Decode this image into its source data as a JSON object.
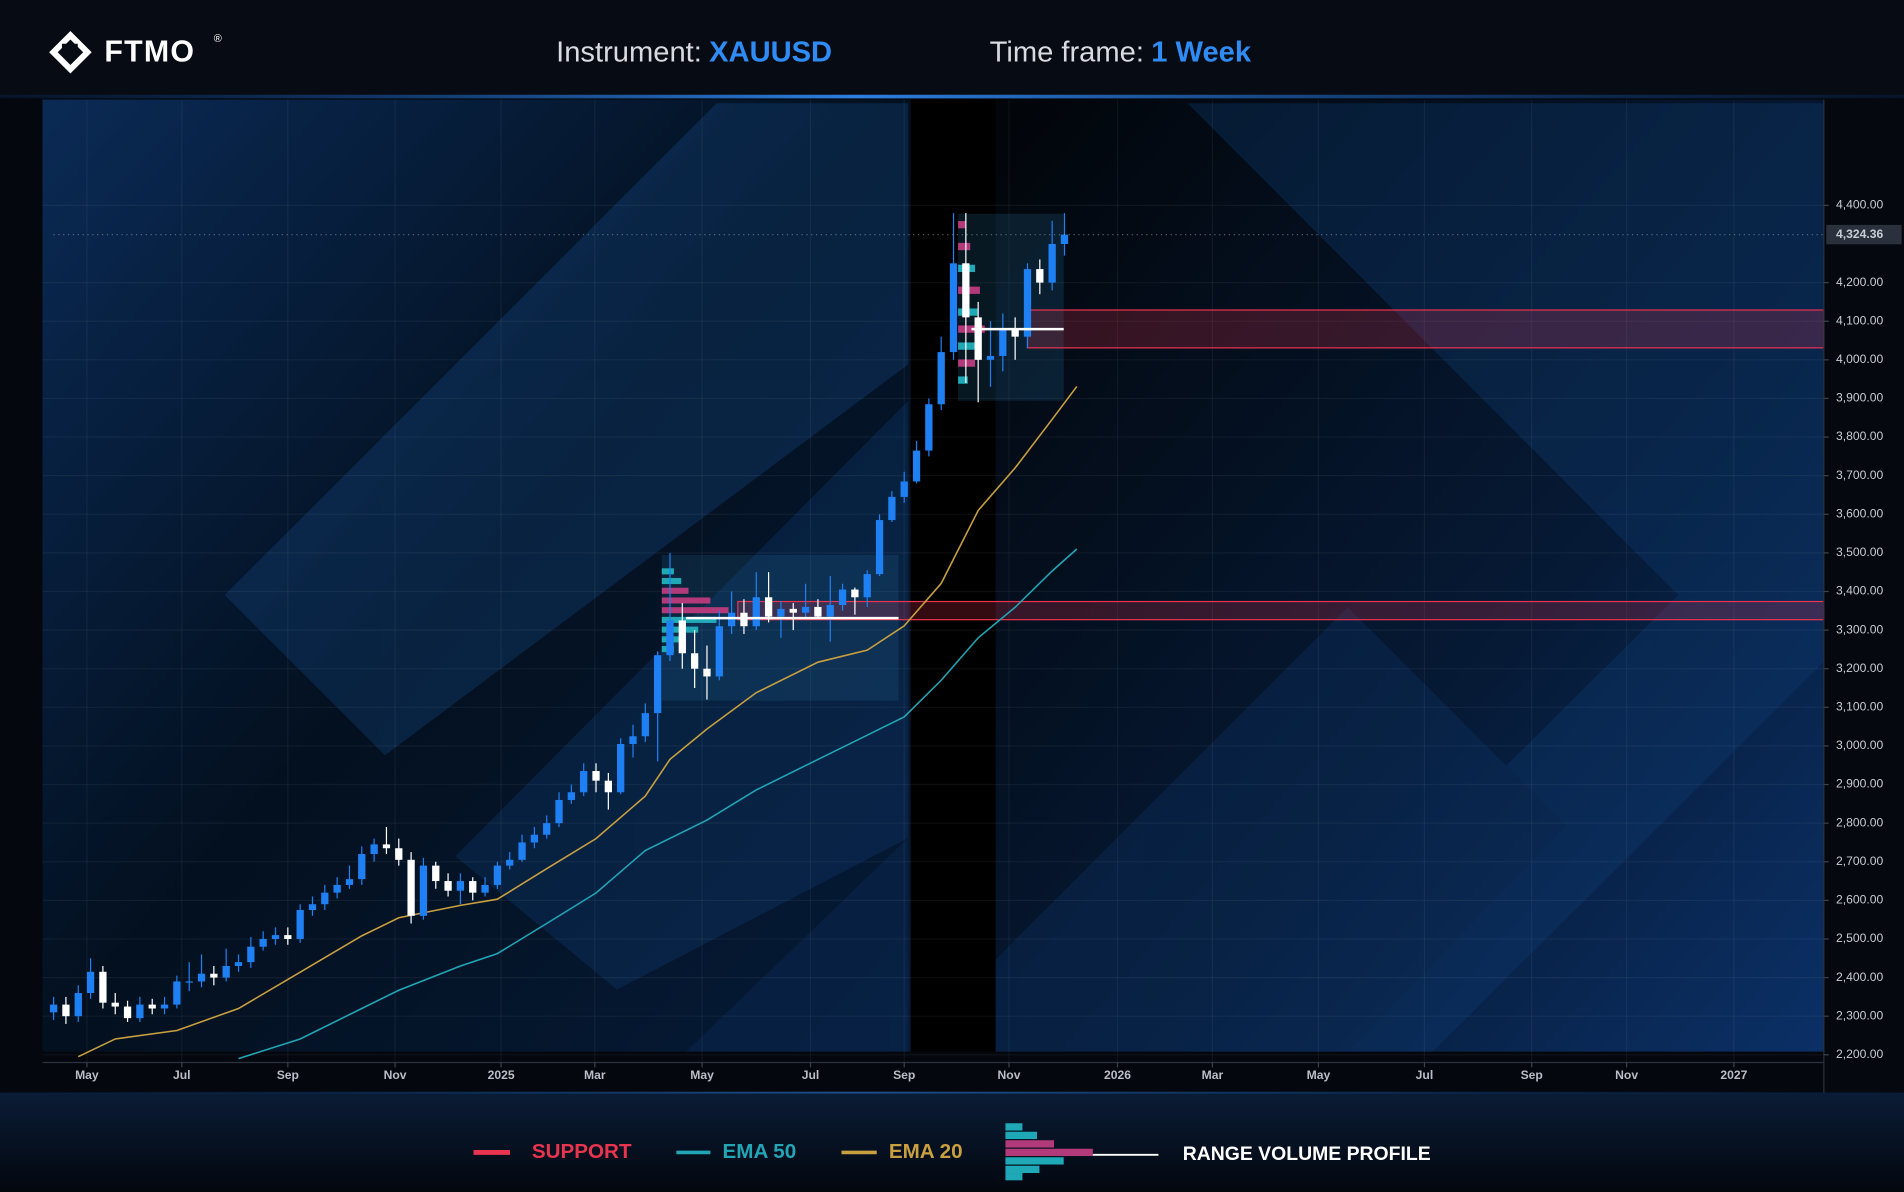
{
  "header": {
    "logo": "FTMO",
    "logo_mark": "®",
    "instrument_label": "Instrument:",
    "instrument": "XAUUSD",
    "timeframe_label": "Time frame:",
    "timeframe": "1 Week"
  },
  "chart_data": {
    "type": "candlestick",
    "open": [
      2310,
      2330,
      2300,
      2360,
      2415,
      2335,
      2325,
      2295,
      2330,
      2320,
      2330,
      2390,
      2390,
      2410,
      2400,
      2430,
      2440,
      2480,
      2500,
      2510,
      2500,
      2575,
      2590,
      2620,
      2640,
      2655,
      2720,
      2745,
      2735,
      2705,
      2560,
      2690,
      2650,
      2625,
      2650,
      2620,
      2640,
      2690,
      2705,
      2750,
      2770,
      2800,
      2860,
      2880,
      2935,
      2910,
      2880,
      3005,
      3025,
      3085,
      3235,
      3325,
      3240,
      3200,
      3180,
      3310,
      3345,
      3310,
      3385,
      3335,
      3355,
      3345,
      3360,
      3335,
      3365,
      3405,
      3385,
      3445,
      3585,
      3645,
      3685,
      3765,
      3885,
      4020,
      4250,
      4110,
      4000,
      4010,
      4080,
      4060,
      4235,
      4200,
      4300
    ],
    "high": [
      2350,
      2350,
      2380,
      2450,
      2430,
      2360,
      2340,
      2350,
      2345,
      2350,
      2405,
      2440,
      2460,
      2430,
      2475,
      2460,
      2505,
      2520,
      2530,
      2530,
      2590,
      2610,
      2640,
      2660,
      2690,
      2740,
      2760,
      2790,
      2760,
      2725,
      2710,
      2700,
      2670,
      2670,
      2660,
      2660,
      2700,
      2725,
      2770,
      2790,
      2820,
      2880,
      2900,
      2955,
      2955,
      2930,
      3020,
      3055,
      3110,
      3245,
      3500,
      3370,
      3300,
      3260,
      3350,
      3400,
      3380,
      3450,
      3450,
      3375,
      3370,
      3420,
      3380,
      3440,
      3420,
      3410,
      3455,
      3600,
      3660,
      3710,
      3790,
      3900,
      4060,
      4380,
      4380,
      4150,
      4100,
      4120,
      4110,
      4250,
      4260,
      4360,
      4380
    ],
    "low": [
      2290,
      2280,
      2285,
      2345,
      2320,
      2305,
      2285,
      2285,
      2305,
      2305,
      2320,
      2365,
      2375,
      2380,
      2390,
      2415,
      2425,
      2470,
      2485,
      2485,
      2490,
      2560,
      2575,
      2605,
      2630,
      2640,
      2700,
      2720,
      2690,
      2540,
      2550,
      2630,
      2610,
      2590,
      2600,
      2610,
      2630,
      2680,
      2700,
      2735,
      2760,
      2790,
      2850,
      2870,
      2880,
      2835,
      2875,
      2970,
      3010,
      2960,
      3220,
      3200,
      3150,
      3120,
      3170,
      3290,
      3290,
      3300,
      3320,
      3280,
      3300,
      3330,
      3330,
      3270,
      3350,
      3340,
      3360,
      3440,
      3580,
      3630,
      3680,
      3750,
      3870,
      4000,
      3940,
      3890,
      3930,
      3970,
      4000,
      4030,
      4170,
      4180,
      4270
    ],
    "close": [
      2330,
      2300,
      2360,
      2415,
      2335,
      2325,
      2295,
      2330,
      2320,
      2330,
      2390,
      2390,
      2410,
      2400,
      2430,
      2440,
      2480,
      2500,
      2510,
      2500,
      2575,
      2590,
      2620,
      2640,
      2655,
      2720,
      2745,
      2735,
      2705,
      2560,
      2690,
      2650,
      2625,
      2650,
      2620,
      2640,
      2690,
      2705,
      2750,
      2770,
      2800,
      2860,
      2880,
      2935,
      2910,
      2880,
      3005,
      3025,
      3085,
      3235,
      3325,
      3240,
      3200,
      3180,
      3310,
      3345,
      3310,
      3385,
      3335,
      3355,
      3345,
      3360,
      3335,
      3365,
      3405,
      3385,
      3445,
      3585,
      3645,
      3685,
      3765,
      3885,
      4020,
      4250,
      4110,
      4000,
      4010,
      4080,
      4060,
      4235,
      4200,
      4300,
      4324.36
    ],
    "up_color": "#1f80f4",
    "down_color": "#ffffff",
    "xlim": [
      -0.9,
      143.6
    ],
    "xticks": [
      {
        "value": 2.7,
        "label": "May"
      },
      {
        "value": 10.4,
        "label": "Jul"
      },
      {
        "value": 19.0,
        "label": "Sep"
      },
      {
        "value": 27.7,
        "label": "Nov"
      },
      {
        "value": 36.3,
        "label": "2025"
      },
      {
        "value": 43.9,
        "label": "Mar"
      },
      {
        "value": 52.6,
        "label": "May"
      },
      {
        "value": 61.4,
        "label": "Jul"
      },
      {
        "value": 69.0,
        "label": "Sep"
      },
      {
        "value": 77.5,
        "label": "Nov"
      },
      {
        "value": 86.3,
        "label": "2026"
      },
      {
        "value": 94.0,
        "label": "Mar"
      },
      {
        "value": 102.6,
        "label": "May"
      },
      {
        "value": 111.2,
        "label": "Jul"
      },
      {
        "value": 119.9,
        "label": "Sep"
      },
      {
        "value": 127.6,
        "label": "Nov"
      },
      {
        "value": 136.3,
        "label": "2027"
      }
    ],
    "ylim": [
      2180,
      4674
    ],
    "yticks": [
      {
        "value": 2200,
        "label": "2,200.00"
      },
      {
        "value": 2300,
        "label": "2,300.00"
      },
      {
        "value": 2400,
        "label": "2,400.00"
      },
      {
        "value": 2500,
        "label": "2,500.00"
      },
      {
        "value": 2600,
        "label": "2,600.00"
      },
      {
        "value": 2700,
        "label": "2,700.00"
      },
      {
        "value": 2800,
        "label": "2,800.00"
      },
      {
        "value": 2900,
        "label": "2,900.00"
      },
      {
        "value": 3000,
        "label": "3,000.00"
      },
      {
        "value": 3100,
        "label": "3,100.00"
      },
      {
        "value": 3200,
        "label": "3,200.00"
      },
      {
        "value": 3300,
        "label": "3,300.00"
      },
      {
        "value": 3400,
        "label": "3,400.00"
      },
      {
        "value": 3500,
        "label": "3,500.00"
      },
      {
        "value": 3600,
        "label": "3,600.00"
      },
      {
        "value": 3700,
        "label": "3,700.00"
      },
      {
        "value": 3800,
        "label": "3,800.00"
      },
      {
        "value": 3900,
        "label": "3,900.00"
      },
      {
        "value": 4000,
        "label": "4,000.00"
      },
      {
        "value": 4100,
        "label": "4,100.00"
      },
      {
        "value": 4200,
        "label": "4,200.00"
      },
      {
        "value": 4400,
        "label": "4,400.00"
      }
    ],
    "grid": true,
    "last_price": {
      "value": 4324.36,
      "label": "4,324.36"
    },
    "lines": [
      {
        "name": "EMA 20",
        "color": "#c9a040",
        "x": [
          2,
          5,
          10,
          15,
          20,
          25,
          28,
          33,
          36,
          40,
          44,
          48,
          50,
          53,
          57,
          62,
          66,
          69,
          72,
          75,
          78,
          81,
          83
        ],
        "values": [
          2195,
          2241,
          2263,
          2320,
          2414,
          2508,
          2555,
          2587,
          2603,
          2682,
          2760,
          2870,
          2965,
          3044,
          3138,
          3217,
          3248,
          3311,
          3421,
          3610,
          3720,
          3846,
          3931
        ]
      },
      {
        "name": "EMA 50",
        "color": "#22a5b5",
        "x": [
          15,
          20,
          25,
          28,
          33,
          36,
          40,
          44,
          48,
          53,
          57,
          62,
          66,
          69,
          72,
          75,
          78,
          81,
          83
        ],
        "values": [
          2190,
          2241,
          2320,
          2367,
          2430,
          2462,
          2540,
          2619,
          2729,
          2808,
          2886,
          2965,
          3028,
          3075,
          3170,
          3280,
          3359,
          3453,
          3510
        ]
      }
    ],
    "support_label": "SUPPORT",
    "support_color": "#e8344e",
    "support_zones": [
      {
        "start": 79,
        "low": 4031,
        "high": 4129
      },
      {
        "start": 55.5,
        "low": 3327,
        "high": 3374
      }
    ],
    "profile_label": "RANGE VOLUME PROFILE"
  }
}
